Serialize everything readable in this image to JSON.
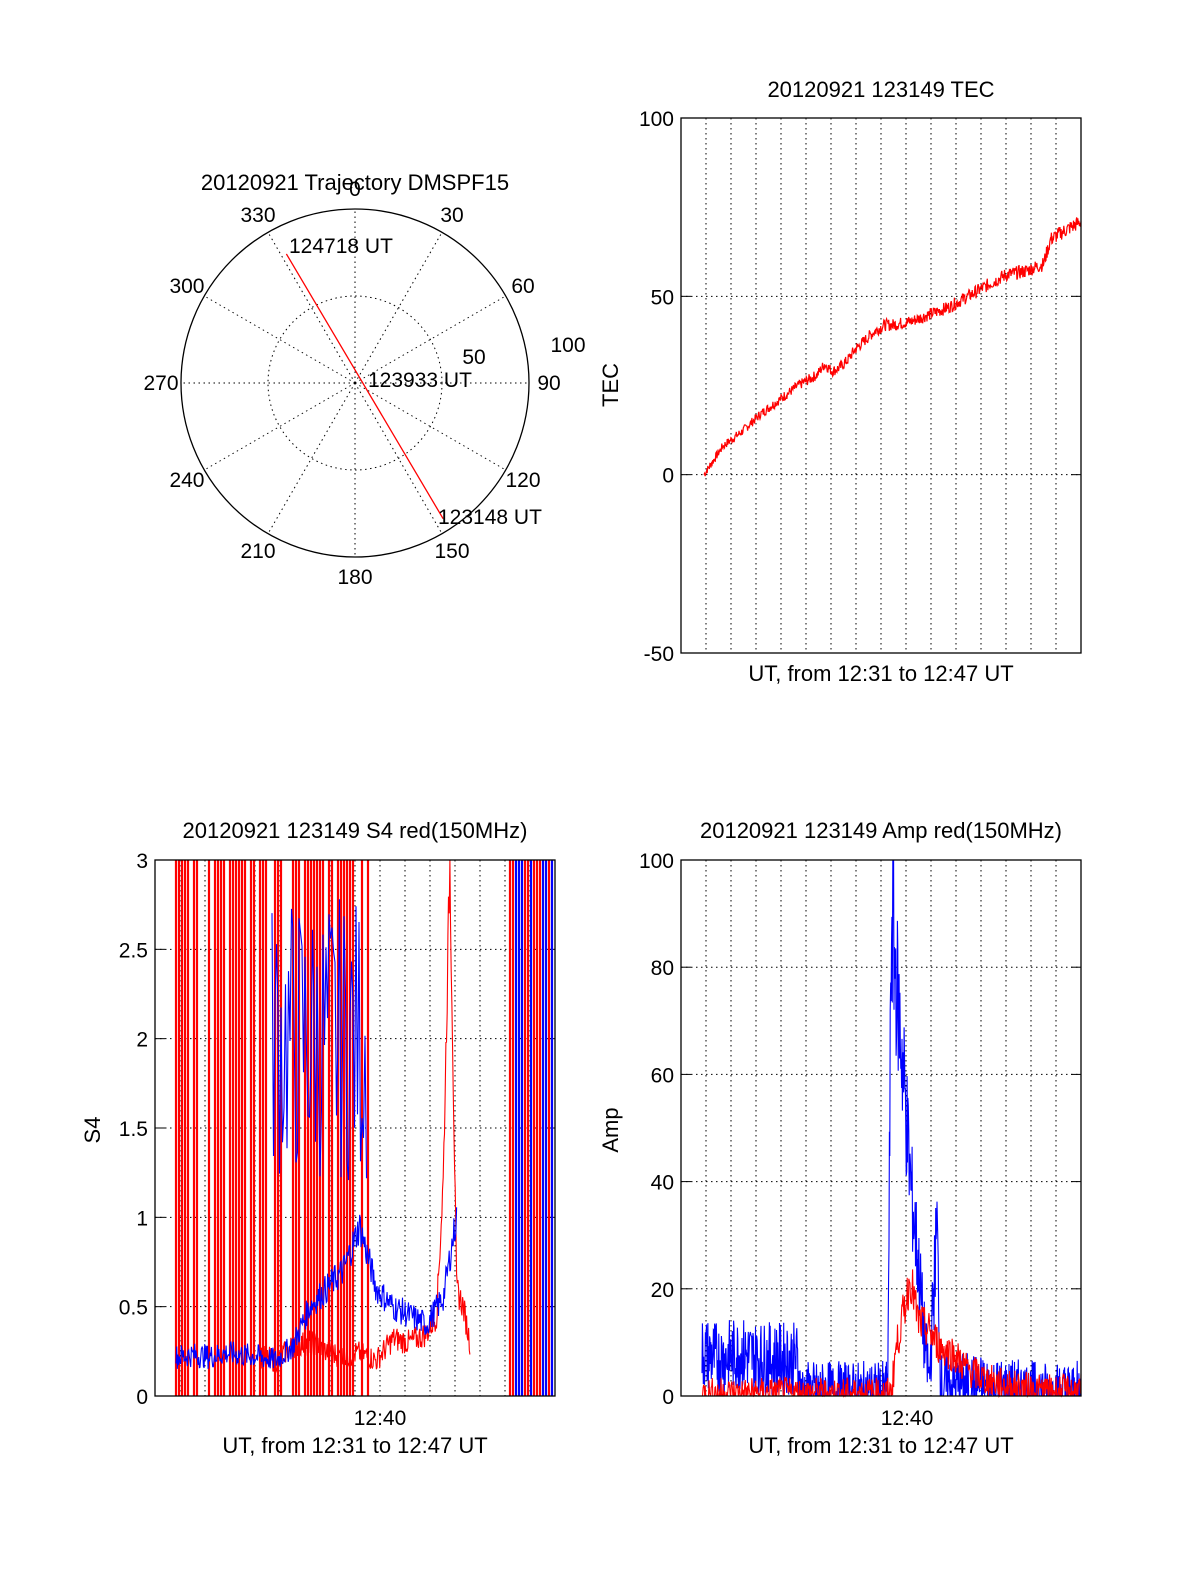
{
  "colors": {
    "red": "#ff0000",
    "blue": "#0000ff",
    "axis": "#000000"
  },
  "chart_data": [
    {
      "id": "polar",
      "type": "polar-trajectory",
      "title": "20120921 Trajectory DMSPF15",
      "angle_labels": [
        "0",
        "30",
        "60",
        "90",
        "120",
        "150",
        "180",
        "210",
        "240",
        "270",
        "300",
        "330"
      ],
      "radius_labels": [
        "50",
        "100"
      ],
      "radius_max": 100,
      "gridlines": true,
      "annotations": [
        "124718 UT",
        "123933 UT",
        "123148 UT"
      ],
      "track": {
        "start": {
          "azimuth": 147,
          "elev_r": 93
        },
        "end": {
          "azimuth": 332,
          "elev_r": 84
        }
      }
    },
    {
      "id": "tec",
      "type": "line",
      "title": "20120921 123149 TEC",
      "xlabel": "UT, from 12:31 to 12:47 UT",
      "ylabel": "TEC",
      "ylim": [
        -50,
        100
      ],
      "yticks": [
        "-50",
        "0",
        "50",
        "100"
      ],
      "xticks": [],
      "grid": true,
      "series": [
        {
          "color": "red",
          "x": [
            0,
            0.05,
            0.1,
            0.15,
            0.2,
            0.25,
            0.3,
            0.32,
            0.34,
            0.36,
            0.38,
            0.4,
            0.45,
            0.48,
            0.5,
            0.55,
            0.6,
            0.65,
            0.7,
            0.75,
            0.8,
            0.85,
            0.9,
            0.92,
            0.95,
            1.0
          ],
          "y": [
            0,
            8,
            12,
            17,
            21,
            25,
            28,
            31,
            29,
            30,
            32,
            35,
            40,
            42,
            42,
            43,
            45,
            47,
            50,
            53,
            56,
            57,
            59,
            66,
            68,
            71
          ]
        }
      ]
    },
    {
      "id": "s4",
      "type": "line",
      "title": "20120921 123149 S4 red(150MHz)",
      "xlabel": "UT, from 12:31 to 12:47 UT",
      "ylabel": "S4",
      "ylim": [
        0,
        3
      ],
      "yticks": [
        "0",
        "0.5",
        "1",
        "1.5",
        "2",
        "2.5",
        "3"
      ],
      "xticks": [
        "12:40"
      ],
      "grid": true,
      "series": [
        {
          "color": "red",
          "x": [
            0.25,
            0.3,
            0.35,
            0.4,
            0.45,
            0.5,
            0.55,
            0.6,
            0.65,
            0.7,
            0.75,
            0.78,
            0.8,
            0.82,
            0.84,
            0.86,
            0.88
          ],
          "y": [
            0.22,
            0.2,
            0.28,
            0.3,
            0.25,
            0.22,
            0.24,
            0.2,
            0.32,
            0.3,
            0.35,
            0.45,
            1.2,
            3.0,
            0.6,
            0.5,
            0.3
          ]
        },
        {
          "color": "blue",
          "x": [
            0.0,
            0.05,
            0.1,
            0.15,
            0.2,
            0.25,
            0.3,
            0.35,
            0.4,
            0.45,
            0.5,
            0.55,
            0.6,
            0.65,
            0.7,
            0.75,
            0.8,
            0.84
          ],
          "y": [
            0.22,
            0.23,
            0.22,
            0.24,
            0.23,
            0.22,
            0.2,
            0.28,
            0.5,
            0.6,
            0.7,
            0.95,
            0.6,
            0.5,
            0.45,
            0.4,
            0.55,
            1.0
          ]
        }
      ]
    },
    {
      "id": "amp",
      "type": "line",
      "title": "20120921 123149 Amp red(150MHz)",
      "xlabel": "UT, from 12:31 to 12:47 UT",
      "ylabel": "Amp",
      "ylim": [
        0,
        100
      ],
      "yticks": [
        "0",
        "20",
        "40",
        "60",
        "80",
        "100"
      ],
      "xticks": [
        "12:40"
      ],
      "grid": true,
      "series": [
        {
          "color": "red",
          "x": [
            0,
            0.1,
            0.2,
            0.25,
            0.5,
            0.51,
            0.53,
            0.55,
            0.57,
            0.6,
            0.63,
            0.66,
            0.7,
            0.75,
            0.8,
            0.9,
            1.0
          ],
          "y": [
            0.5,
            0.5,
            0.5,
            0.5,
            0.5,
            8,
            15,
            22,
            14,
            12,
            9,
            8,
            5,
            3,
            2,
            1,
            1
          ]
        },
        {
          "color": "blue",
          "x": [
            0,
            0.05,
            0.1,
            0.15,
            0.2,
            0.25,
            0.26,
            0.4,
            0.49,
            0.5,
            0.51,
            0.53,
            0.55,
            0.57,
            0.59,
            0.6,
            0.62,
            0.63,
            0.65,
            0.7,
            0.8,
            0.9,
            1.0
          ],
          "y": [
            8,
            7,
            8,
            7,
            7,
            7,
            0.5,
            0.5,
            0.5,
            90,
            80,
            62,
            40,
            25,
            8,
            3,
            32,
            2,
            2,
            2,
            1,
            0.5,
            0.5
          ]
        }
      ]
    }
  ]
}
